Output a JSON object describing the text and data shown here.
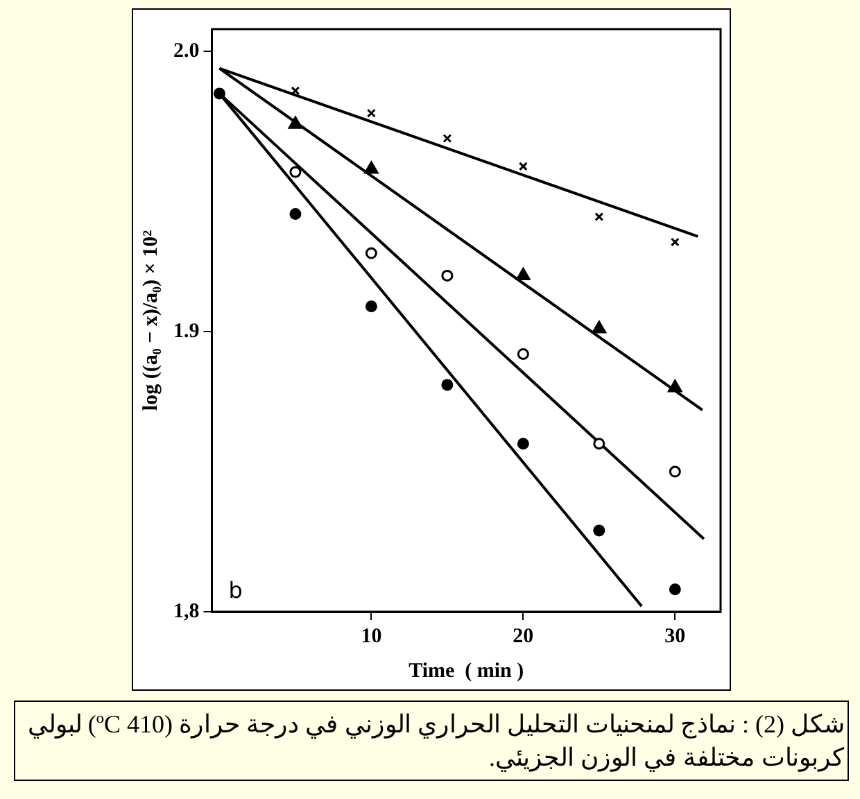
{
  "chart_data": {
    "type": "scatter",
    "xlabel": "Time  ( min )",
    "ylabel": "log ((a₀ − x)/a₀) × 10²",
    "annotations": [
      "b",
      "شكل (2) : نماذج لمنحنيات التحليل الحراري الوزني في درجة حرارة (410 ºC) لبولي كربونات مختلفة في الوزن الجزيئي."
    ],
    "xlim": [
      -0.5,
      33
    ],
    "xticks": [
      10,
      20,
      30
    ],
    "ylim": [
      1.8,
      2.008
    ],
    "yticks": [
      {
        "value": 1.8,
        "label": "1,8"
      },
      {
        "value": 1.9,
        "label": "1.9"
      },
      {
        "value": 2.0,
        "label": "2.0"
      }
    ],
    "grid": false,
    "legend": false,
    "series": [
      {
        "type": "scatter",
        "marker": "cross",
        "color": "#000000",
        "x": [
          5,
          10,
          15,
          20,
          25,
          30
        ],
        "values": [
          1.986,
          1.978,
          1.969,
          1.959,
          1.941,
          1.932
        ]
      },
      {
        "type": "scatter",
        "marker": "triangle",
        "color": "#000000",
        "x": [
          5,
          10,
          20,
          25,
          30
        ],
        "values": [
          1.974,
          1.958,
          1.92,
          1.901,
          1.88
        ]
      },
      {
        "type": "scatter",
        "marker": "circle",
        "color": "#ffffff",
        "x": [
          5,
          10,
          15,
          20,
          25,
          30
        ],
        "values": [
          1.957,
          1.928,
          1.92,
          1.892,
          1.86,
          1.85
        ]
      },
      {
        "type": "scatter",
        "marker": "circle",
        "color": "#000000",
        "x": [
          0,
          5,
          10,
          15,
          20,
          25,
          30
        ],
        "values": [
          1.985,
          1.942,
          1.909,
          1.881,
          1.86,
          1.829,
          1.808
        ]
      },
      {
        "type": "line",
        "marker": "none",
        "color": "#000000",
        "x": [
          0,
          31.5
        ],
        "values": [
          1.994,
          1.934
        ]
      },
      {
        "type": "line",
        "marker": "none",
        "color": "#000000",
        "x": [
          0,
          31.8
        ],
        "values": [
          1.994,
          1.872
        ]
      },
      {
        "type": "line",
        "marker": "none",
        "color": "#000000",
        "x": [
          0,
          31.9
        ],
        "values": [
          1.985,
          1.826
        ]
      },
      {
        "type": "line",
        "marker": "none",
        "color": "#000000",
        "x": [
          0,
          27.8
        ],
        "values": [
          1.985,
          1.802
        ]
      }
    ]
  }
}
